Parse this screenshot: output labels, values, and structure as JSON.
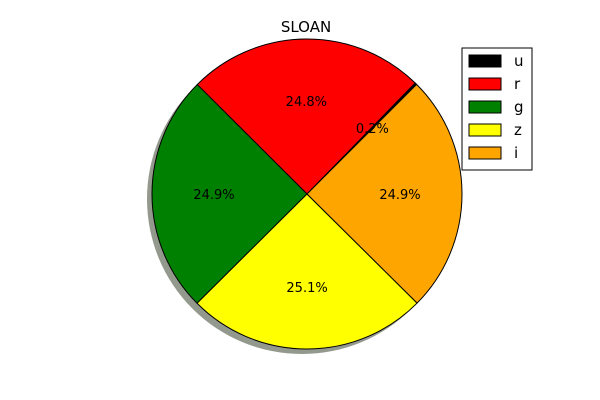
{
  "chart_data": {
    "type": "pie",
    "title": "SLOAN",
    "labels": [
      "u",
      "r",
      "g",
      "z",
      "i"
    ],
    "values": [
      0.2,
      24.8,
      24.9,
      25.1,
      24.9
    ],
    "percent_labels": [
      "0.2%",
      "24.8%",
      "24.9%",
      "25.1%",
      "24.9%"
    ],
    "colors": [
      "#000000",
      "#ff0000",
      "#008000",
      "#ffff00",
      "#ffa500"
    ],
    "shadow": true,
    "start_angle_deg": 45,
    "direction": "counterclockwise",
    "legend_position": "top-right"
  }
}
